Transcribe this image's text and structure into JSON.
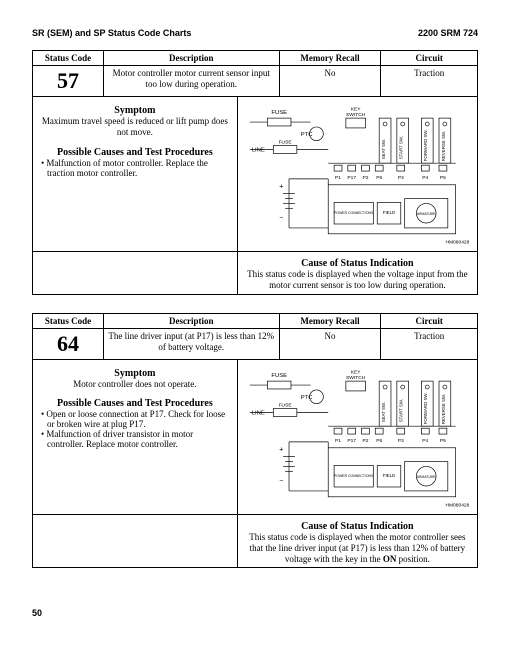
{
  "header": {
    "left": "SR (SEM) and SP Status Code Charts",
    "right": "2200 SRM 724"
  },
  "columns": {
    "code": "Status Code",
    "desc": "Description",
    "mem": "Memory Recall",
    "circ": "Circuit"
  },
  "codes": [
    {
      "number": "57",
      "description": "Motor controller motor current sensor input too low during operation.",
      "memory": "No",
      "circuit": "Traction",
      "symptom_label": "Symptom",
      "symptom_text": "Maximum travel speed is reduced or lift pump does not move.",
      "causes_label": "Possible Causes and Test Procedures",
      "causes": [
        "Malfunction of motor controller. Replace the traction motor controller."
      ],
      "cause_indication_label": "Cause of Status Indication",
      "cause_indication_text": "This status code is displayed when the voltage input from the motor current sensor is too low during operation."
    },
    {
      "number": "64",
      "description": "The line driver input (at P17) is less than 12% of battery voltage.",
      "memory": "No",
      "circuit": "Traction",
      "symptom_label": "Symptom",
      "symptom_text": "Motor controller does not operate.",
      "causes_label": "Possible Causes and Test Procedures",
      "causes": [
        "Open or loose connection at P17. Check for loose or broken wire at plug P17.",
        "Malfunction of driver transistor in motor controller. Replace motor controller."
      ],
      "cause_indication_label": "Cause of Status Indication",
      "cause_indication_text": "This status code is displayed when the motor controller sees that the line driver input (at P17) is less than 12% of battery voltage with the key in the ON position."
    }
  ],
  "diagram": {
    "labels": {
      "fuse": "FUSE",
      "line": "LINE",
      "ptc": "PTC",
      "key_switch": "KEY\nSWITCH",
      "seat_sw": "SEAT SW.",
      "start_sw": "START SW.",
      "forward_sw": "FORWARD SW.",
      "reverse_sw": "REVERSE SW.",
      "p1": "P1",
      "p17": "P17",
      "p2": "P2",
      "p6": "P6",
      "p3": "P3",
      "p4": "P4",
      "p5": "P5",
      "power_conn": "POWER CONNECTIONS",
      "field": "FIELD",
      "armature": "ARMATURE",
      "ref": "HM080428"
    },
    "colors": {
      "stroke": "#000000",
      "fill_none": "none"
    }
  },
  "page_number": "50"
}
